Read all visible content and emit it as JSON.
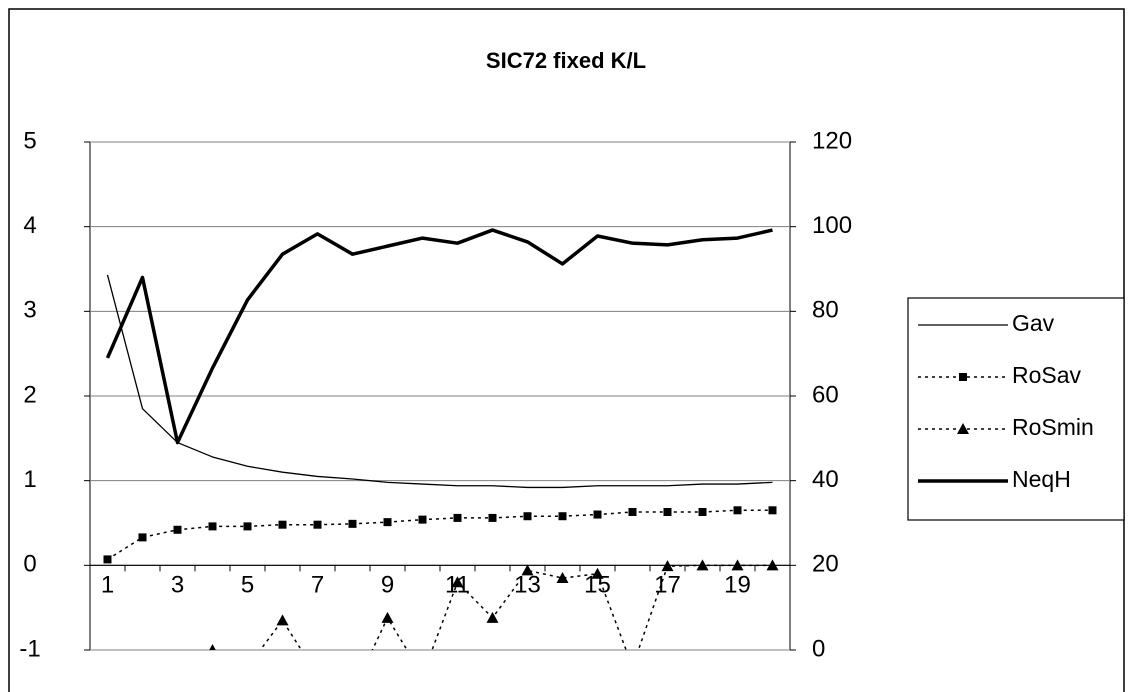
{
  "chart_data": {
    "type": "line",
    "title": "SIC72 fixed K/L",
    "categories": [
      1,
      null,
      3,
      null,
      5,
      null,
      7,
      null,
      9,
      null,
      11,
      null,
      13,
      null,
      15,
      null,
      17,
      null,
      19,
      null
    ],
    "series": [
      {
        "name": "Gav",
        "color": "#000000",
        "line_width": 1.3,
        "dash": "solid",
        "marker": "none",
        "values": [
          3.43,
          1.85,
          1.45,
          1.28,
          1.17,
          1.1,
          1.05,
          1.02,
          0.98,
          0.96,
          0.94,
          0.94,
          0.92,
          0.92,
          0.94,
          0.94,
          0.94,
          0.96,
          0.96,
          0.98
        ]
      },
      {
        "name": "RoSav",
        "color": "#000000",
        "line_width": 1.5,
        "dash": "dotted",
        "marker": "square",
        "values": [
          0.07,
          0.33,
          0.42,
          0.46,
          0.46,
          0.48,
          0.48,
          0.49,
          0.51,
          0.54,
          0.56,
          0.56,
          0.58,
          0.58,
          0.6,
          0.63,
          0.63,
          0.63,
          0.65,
          0.65
        ]
      },
      {
        "name": "RoSmin",
        "color": "#000000",
        "line_width": 1.5,
        "dash": "dotted",
        "marker": "triangle",
        "values": [
          -1.5,
          -1.5,
          -1.5,
          -1.0,
          -1.2,
          -0.65,
          -1.3,
          -1.5,
          -0.62,
          -1.3,
          -0.2,
          -0.62,
          -0.06,
          -0.15,
          -0.1,
          -1.2,
          -0.01,
          0,
          0,
          0
        ]
      },
      {
        "name": "NeqH",
        "color": "#000000",
        "line_width": 3.5,
        "dash": "solid",
        "marker": "none",
        "axis": "y2",
        "values": [
          69,
          88,
          49,
          66.6,
          82.7,
          93.5,
          98.3,
          93.5,
          95.4,
          97.3,
          96.1,
          99.2,
          96.4,
          91.2,
          97.8,
          96.1,
          95.7,
          96.9,
          97.3,
          99.2
        ]
      }
    ],
    "ylim": [
      -1,
      5
    ],
    "yticks": [
      -1,
      0,
      1,
      2,
      3,
      4,
      5
    ],
    "y2lim": [
      0,
      120
    ],
    "y2ticks": [
      0,
      20,
      40,
      60,
      80,
      100,
      120
    ],
    "grid": true,
    "legend": "right"
  }
}
